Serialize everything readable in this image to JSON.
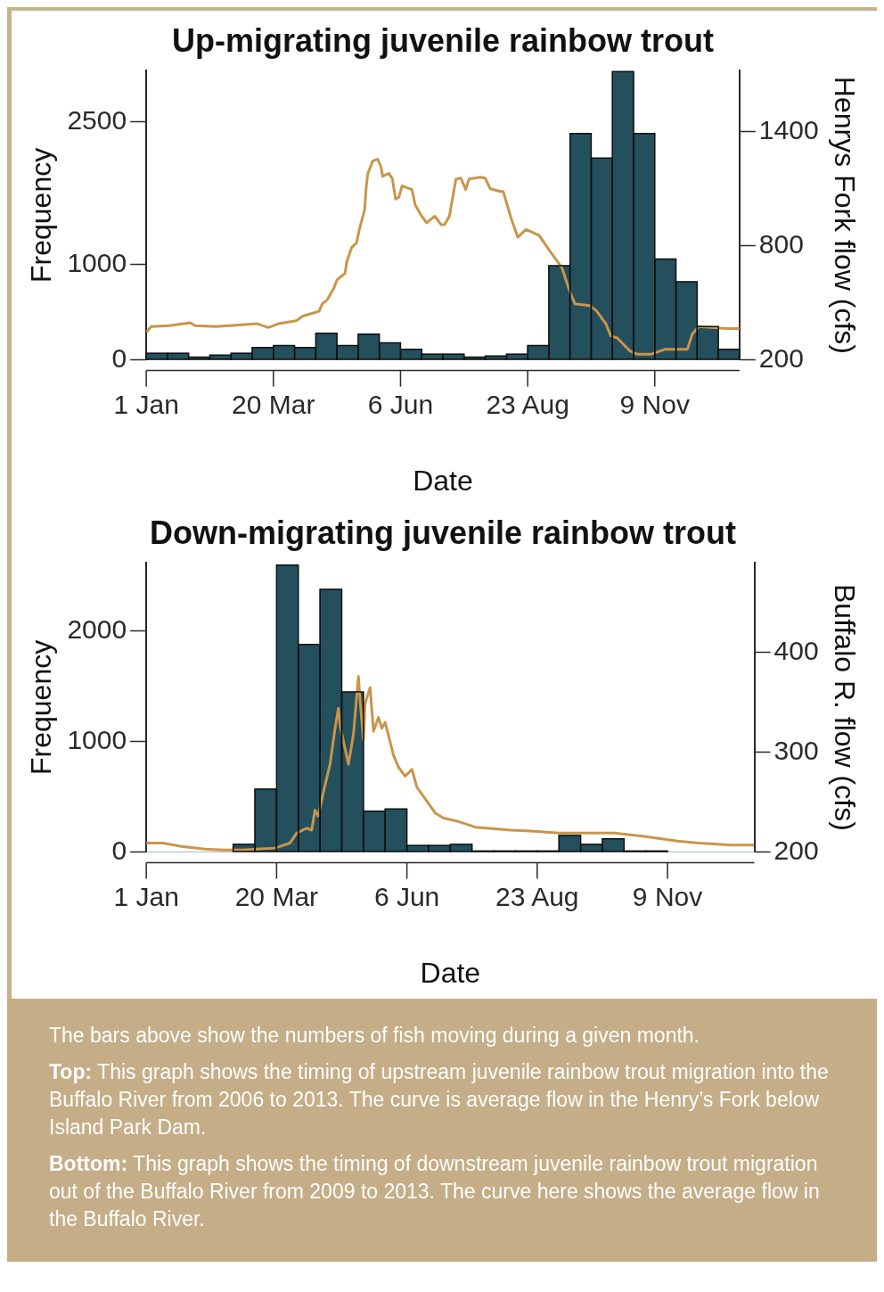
{
  "chart_data": [
    {
      "type": "histogram",
      "title": "Up-migrating juvenile rainbow trout",
      "xlabel": "Date",
      "ylabel": "Frequency",
      "y2label": "Henrys Fork flow (cfs)",
      "bins": [
        "--01-01",
        "--01-14",
        "--01-27",
        "--02-09",
        "--02-22",
        "--03-07",
        "--03-20",
        "--04-02",
        "--04-15",
        "--04-28",
        "--05-11",
        "--05-24",
        "--06-06",
        "--06-19",
        "--07-02",
        "--07-15",
        "--07-28",
        "--08-10",
        "--08-23",
        "--09-05",
        "--09-18",
        "--10-01",
        "--10-14",
        "--10-27",
        "--11-09",
        "--11-22",
        "--12-05",
        "--12-18",
        "--12-31"
      ],
      "values": [
        70,
        70,
        30,
        50,
        70,
        130,
        150,
        130,
        280,
        150,
        270,
        180,
        110,
        60,
        60,
        30,
        40,
        60,
        150,
        990,
        2380,
        2120,
        3030,
        2380,
        1060,
        820,
        350,
        110
      ],
      "color": "#244f5d",
      "xlim": [
        "--01-01",
        "--12-31"
      ],
      "xticks": [
        {
          "value": "--01-01",
          "label": "1 Jan"
        },
        {
          "value": "--03-20",
          "label": "20 Mar"
        },
        {
          "value": "--06-06",
          "label": "6 Jun"
        },
        {
          "value": "--08-23",
          "label": "23 Aug"
        },
        {
          "value": "--11-09",
          "label": "9 Nov"
        }
      ],
      "ylim": [
        0,
        3040
      ],
      "yticks": [
        0,
        1000,
        2500
      ],
      "y2lim": [
        200,
        1720
      ],
      "y2ticks": [
        200,
        800,
        1400
      ],
      "series": [
        {
          "type": "line",
          "axis": "y2",
          "color": "#c9954a",
          "x": [
            "--01-01",
            "--01-04",
            "--01-15",
            "--01-28",
            "--01-31",
            "--02-13",
            "--03-10",
            "--03-17",
            "--03-23",
            "--04-03",
            "--04-07",
            "--04-17",
            "--04-19",
            "--04-22",
            "--04-26",
            "--04-28",
            "--05-03",
            "--05-04",
            "--05-07",
            "--05-10",
            "--05-12",
            "--05-15",
            "--05-16",
            "--05-17",
            "--05-20",
            "--05-23",
            "--05-25",
            "--05-26",
            "--05-30",
            "--06-01",
            "--06-03",
            "--06-05",
            "--06-07",
            "--06-13",
            "--06-15",
            "--06-19",
            "--06-22",
            "--06-27",
            "--07-01",
            "--07-03",
            "--07-06",
            "--07-10",
            "--07-13",
            "--07-16",
            "--07-18",
            "--07-25",
            "--07-28",
            "--07-31",
            "--08-06",
            "--08-08",
            "--08-13",
            "--08-17",
            "--08-22",
            "--08-30",
            "--09-05",
            "--09-13",
            "--09-18",
            "--09-21",
            "--09-30",
            "--10-04",
            "--10-10",
            "--10-13",
            "--10-17",
            "--10-25",
            "--10-29",
            "--11-07",
            "--11-15",
            "--11-29",
            "--12-02",
            "--12-06",
            "--12-23",
            "--12-31"
          ],
          "values": [
            345,
            375,
            380,
            395,
            380,
            375,
            390,
            370,
            390,
            405,
            430,
            455,
            495,
            515,
            575,
            620,
            655,
            715,
            790,
            815,
            895,
            990,
            1115,
            1180,
            1245,
            1255,
            1215,
            1165,
            1180,
            1150,
            1045,
            1055,
            1115,
            1095,
            1015,
            955,
            920,
            955,
            910,
            910,
            955,
            1150,
            1155,
            1095,
            1150,
            1160,
            1155,
            1100,
            1085,
            1085,
            940,
            845,
            885,
            855,
            780,
            685,
            555,
            495,
            485,
            460,
            390,
            325,
            315,
            245,
            230,
            230,
            255,
            255,
            335,
            375,
            365,
            365
          ]
        }
      ],
      "grid": false,
      "legend": false
    },
    {
      "type": "histogram",
      "title": "Down-migrating juvenile rainbow trout",
      "xlabel": "Date",
      "ylabel": "Frequency",
      "y2label": "Buffalo R. flow (cfs)",
      "bins": [
        "--01-01",
        "--01-14",
        "--01-27",
        "--02-09",
        "--02-22",
        "--03-07",
        "--03-20",
        "--04-02",
        "--04-15",
        "--04-28",
        "--05-11",
        "--05-24",
        "--06-06",
        "--06-19",
        "--07-02",
        "--07-15",
        "--07-28",
        "--08-10",
        "--08-23",
        "--09-05",
        "--09-18",
        "--10-01",
        "--10-14",
        "--10-27",
        "--11-09",
        "--11-22",
        "--12-05",
        "--12-18",
        "--12-31"
      ],
      "values": [
        0,
        0,
        0,
        0,
        70,
        570,
        2600,
        1880,
        2380,
        1450,
        370,
        390,
        60,
        60,
        70,
        10,
        10,
        10,
        10,
        150,
        70,
        120,
        10,
        10,
        0,
        0,
        0,
        0
      ],
      "color": "#244f5d",
      "xlim": [
        "--01-01",
        "--12-31"
      ],
      "xticks": [
        {
          "value": "--01-01",
          "label": "1 Jan"
        },
        {
          "value": "--03-20",
          "label": "20 Mar"
        },
        {
          "value": "--06-06",
          "label": "6 Jun"
        },
        {
          "value": "--08-23",
          "label": "23 Aug"
        },
        {
          "value": "--11-09",
          "label": "9 Nov"
        }
      ],
      "ylim": [
        0,
        2620
      ],
      "yticks": [
        0,
        1000,
        2000
      ],
      "y2lim": [
        200,
        490
      ],
      "y2ticks": [
        200,
        300,
        400
      ],
      "series": [
        {
          "type": "line",
          "axis": "y2",
          "color": "#c9954a",
          "x": [
            "--01-01",
            "--01-05",
            "--01-11",
            "--01-21",
            "--02-05",
            "--02-16",
            "--02-28",
            "--03-08",
            "--03-19",
            "--03-28",
            "--04-01",
            "--04-07",
            "--04-10",
            "--04-12",
            "--04-14",
            "--04-17",
            "--04-21",
            "--04-24",
            "--04-26",
            "--04-27",
            "--05-02",
            "--05-05",
            "--05-08",
            "--05-09",
            "--05-11",
            "--05-12",
            "--05-15",
            "--05-17",
            "--05-20",
            "--05-22",
            "--05-24",
            "--05-29",
            "--06-01",
            "--06-05",
            "--06-09",
            "--06-12",
            "--06-18",
            "--06-23",
            "--06-28",
            "--07-06",
            "--07-17",
            "--08-07",
            "--08-19",
            "--09-05",
            "--10-08",
            "--10-25",
            "--11-15",
            "--11-28",
            "--12-17",
            "--12-31"
          ],
          "values": [
            209,
            209,
            209,
            206,
            203,
            202,
            202,
            203,
            204,
            209,
            219,
            224,
            222,
            242,
            236,
            260,
            288,
            324,
            344,
            327,
            288,
            318,
            376,
            352,
            312,
            349,
            365,
            321,
            335,
            324,
            330,
            297,
            285,
            276,
            283,
            265,
            251,
            239,
            234,
            231,
            225,
            222,
            221,
            219,
            219,
            216,
            211,
            209,
            207,
            207
          ]
        }
      ],
      "grid": false,
      "legend": false,
      "annotations": [
        "The bars above show the numbers of fish moving during a given month.",
        "Top: This graph shows the timing of upstream juvenile rainbow trout migration into the Buffalo River from 2006 to 2013. The curve is average flow in the Henry’s Fork below Island Park Dam.",
        "Bottom: This graph shows the timing of downstream juvenile rainbow trout migration out of the Buffalo River from 2009 to 2013. The curve here shows the average flow in the Buffalo River."
      ]
    }
  ]
}
